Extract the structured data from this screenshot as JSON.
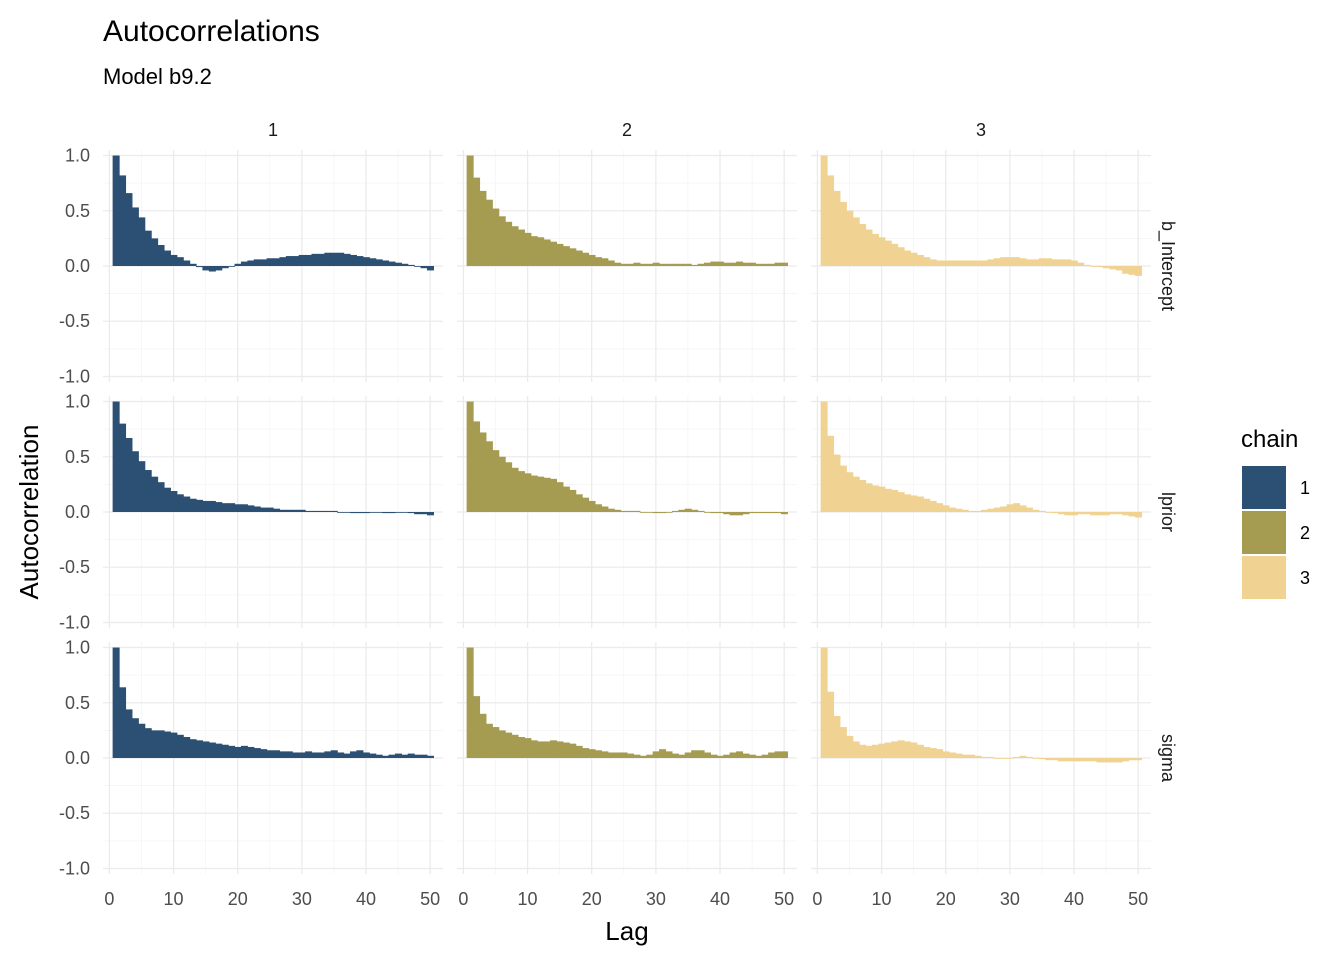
{
  "chart_data": {
    "type": "bar",
    "title": "Autocorrelations",
    "subtitle": "Model b9.2",
    "xlabel": "Lag",
    "ylabel": "Autocorrelation",
    "xlim": [
      -1,
      52
    ],
    "ylim": [
      -1.05,
      1.05
    ],
    "x_ticks": [
      0,
      10,
      20,
      30,
      40,
      50
    ],
    "y_ticks": [
      1.0,
      0.5,
      0.0,
      -0.5,
      -1.0
    ],
    "y_tick_labels": [
      "1.0",
      "0.5",
      "0.0",
      "-0.5",
      "-1.0"
    ],
    "grid": true,
    "facet_cols": [
      "1",
      "2",
      "3"
    ],
    "facet_rows": [
      "b_Intercept",
      "lprior",
      "sigma"
    ],
    "legend": {
      "title": "chain",
      "position": "right",
      "entries": [
        {
          "label": "1",
          "color": "#2c5073"
        },
        {
          "label": "2",
          "color": "#a59c52"
        },
        {
          "label": "3",
          "color": "#f0d392"
        }
      ]
    },
    "lags": [
      1,
      2,
      3,
      4,
      5,
      6,
      7,
      8,
      9,
      10,
      11,
      12,
      13,
      14,
      15,
      16,
      17,
      18,
      19,
      20,
      21,
      22,
      23,
      24,
      25,
      26,
      27,
      28,
      29,
      30,
      31,
      32,
      33,
      34,
      35,
      36,
      37,
      38,
      39,
      40,
      41,
      42,
      43,
      44,
      45,
      46,
      47,
      48,
      49,
      50
    ],
    "panels": [
      {
        "row": "b_Intercept",
        "chain": "1",
        "values": [
          1.0,
          0.82,
          0.66,
          0.53,
          0.44,
          0.32,
          0.25,
          0.19,
          0.14,
          0.1,
          0.08,
          0.05,
          0.02,
          -0.01,
          -0.04,
          -0.05,
          -0.04,
          -0.02,
          0.0,
          0.02,
          0.04,
          0.05,
          0.06,
          0.06,
          0.07,
          0.07,
          0.08,
          0.09,
          0.09,
          0.1,
          0.1,
          0.11,
          0.11,
          0.12,
          0.12,
          0.12,
          0.11,
          0.1,
          0.09,
          0.08,
          0.07,
          0.06,
          0.05,
          0.04,
          0.03,
          0.02,
          0.01,
          0.0,
          -0.02,
          -0.04
        ]
      },
      {
        "row": "b_Intercept",
        "chain": "2",
        "values": [
          1.0,
          0.8,
          0.68,
          0.6,
          0.52,
          0.45,
          0.4,
          0.36,
          0.33,
          0.3,
          0.27,
          0.26,
          0.24,
          0.22,
          0.2,
          0.18,
          0.16,
          0.14,
          0.12,
          0.1,
          0.08,
          0.07,
          0.05,
          0.03,
          0.02,
          0.02,
          0.03,
          0.02,
          0.02,
          0.03,
          0.02,
          0.02,
          0.02,
          0.02,
          0.02,
          0.01,
          0.02,
          0.03,
          0.04,
          0.04,
          0.03,
          0.03,
          0.04,
          0.03,
          0.03,
          0.02,
          0.02,
          0.02,
          0.03,
          0.03
        ]
      },
      {
        "row": "b_Intercept",
        "chain": "3",
        "values": [
          1.0,
          0.82,
          0.68,
          0.58,
          0.5,
          0.44,
          0.38,
          0.33,
          0.29,
          0.26,
          0.23,
          0.2,
          0.17,
          0.14,
          0.12,
          0.1,
          0.08,
          0.06,
          0.05,
          0.05,
          0.05,
          0.05,
          0.05,
          0.05,
          0.05,
          0.05,
          0.06,
          0.07,
          0.08,
          0.08,
          0.08,
          0.07,
          0.06,
          0.06,
          0.07,
          0.07,
          0.06,
          0.06,
          0.06,
          0.05,
          0.03,
          0.01,
          0.0,
          -0.01,
          -0.02,
          -0.03,
          -0.04,
          -0.07,
          -0.08,
          -0.09
        ]
      },
      {
        "row": "lprior",
        "chain": "1",
        "values": [
          1.0,
          0.8,
          0.67,
          0.55,
          0.46,
          0.38,
          0.32,
          0.27,
          0.22,
          0.19,
          0.16,
          0.14,
          0.12,
          0.11,
          0.1,
          0.1,
          0.09,
          0.08,
          0.08,
          0.07,
          0.07,
          0.06,
          0.05,
          0.04,
          0.04,
          0.03,
          0.02,
          0.02,
          0.02,
          0.02,
          0.01,
          0.01,
          0.01,
          0.01,
          0.01,
          0.0,
          0.0,
          -0.01,
          -0.01,
          -0.01,
          0.0,
          0.0,
          -0.01,
          -0.01,
          0.0,
          0.0,
          -0.01,
          -0.02,
          -0.02,
          -0.03
        ]
      },
      {
        "row": "lprior",
        "chain": "2",
        "values": [
          1.0,
          0.82,
          0.72,
          0.64,
          0.56,
          0.5,
          0.45,
          0.4,
          0.37,
          0.35,
          0.33,
          0.32,
          0.31,
          0.3,
          0.27,
          0.23,
          0.2,
          0.16,
          0.13,
          0.1,
          0.07,
          0.05,
          0.03,
          0.02,
          0.01,
          0.01,
          0.01,
          0.0,
          0.0,
          -0.01,
          -0.01,
          0.0,
          0.01,
          0.02,
          0.03,
          0.02,
          0.01,
          0.0,
          -0.01,
          -0.01,
          -0.02,
          -0.03,
          -0.03,
          -0.02,
          -0.01,
          -0.01,
          -0.01,
          -0.01,
          -0.01,
          -0.02
        ]
      },
      {
        "row": "lprior",
        "chain": "3",
        "values": [
          1.0,
          0.69,
          0.52,
          0.42,
          0.36,
          0.32,
          0.29,
          0.26,
          0.24,
          0.23,
          0.21,
          0.2,
          0.18,
          0.16,
          0.15,
          0.14,
          0.12,
          0.1,
          0.08,
          0.06,
          0.04,
          0.03,
          0.02,
          0.01,
          0.01,
          0.02,
          0.03,
          0.04,
          0.05,
          0.07,
          0.08,
          0.06,
          0.04,
          0.02,
          0.01,
          0.0,
          -0.01,
          -0.02,
          -0.03,
          -0.03,
          -0.02,
          -0.02,
          -0.03,
          -0.03,
          -0.03,
          -0.02,
          -0.02,
          -0.03,
          -0.04,
          -0.05
        ]
      },
      {
        "row": "sigma",
        "chain": "1",
        "values": [
          1.0,
          0.64,
          0.44,
          0.36,
          0.31,
          0.27,
          0.25,
          0.25,
          0.24,
          0.23,
          0.21,
          0.19,
          0.17,
          0.16,
          0.15,
          0.14,
          0.13,
          0.12,
          0.11,
          0.1,
          0.11,
          0.1,
          0.09,
          0.08,
          0.07,
          0.07,
          0.06,
          0.06,
          0.05,
          0.05,
          0.06,
          0.05,
          0.05,
          0.06,
          0.07,
          0.05,
          0.04,
          0.06,
          0.07,
          0.05,
          0.04,
          0.03,
          0.02,
          0.03,
          0.04,
          0.03,
          0.04,
          0.03,
          0.03,
          0.02
        ]
      },
      {
        "row": "sigma",
        "chain": "2",
        "values": [
          1.0,
          0.56,
          0.4,
          0.31,
          0.28,
          0.25,
          0.23,
          0.21,
          0.19,
          0.18,
          0.16,
          0.15,
          0.15,
          0.16,
          0.15,
          0.14,
          0.13,
          0.11,
          0.09,
          0.08,
          0.07,
          0.06,
          0.05,
          0.05,
          0.05,
          0.04,
          0.03,
          0.02,
          0.03,
          0.06,
          0.08,
          0.06,
          0.04,
          0.03,
          0.05,
          0.07,
          0.07,
          0.05,
          0.03,
          0.02,
          0.03,
          0.05,
          0.06,
          0.04,
          0.03,
          0.02,
          0.03,
          0.05,
          0.06,
          0.06
        ]
      },
      {
        "row": "sigma",
        "chain": "3",
        "values": [
          1.0,
          0.6,
          0.38,
          0.28,
          0.2,
          0.15,
          0.12,
          0.11,
          0.12,
          0.13,
          0.14,
          0.15,
          0.16,
          0.15,
          0.14,
          0.12,
          0.1,
          0.09,
          0.08,
          0.06,
          0.05,
          0.04,
          0.03,
          0.03,
          0.02,
          0.01,
          0.01,
          0.0,
          0.0,
          0.0,
          0.01,
          0.02,
          0.01,
          0.0,
          -0.01,
          -0.02,
          -0.02,
          -0.03,
          -0.03,
          -0.03,
          -0.03,
          -0.03,
          -0.03,
          -0.04,
          -0.04,
          -0.04,
          -0.04,
          -0.03,
          -0.02,
          -0.02
        ]
      }
    ]
  }
}
